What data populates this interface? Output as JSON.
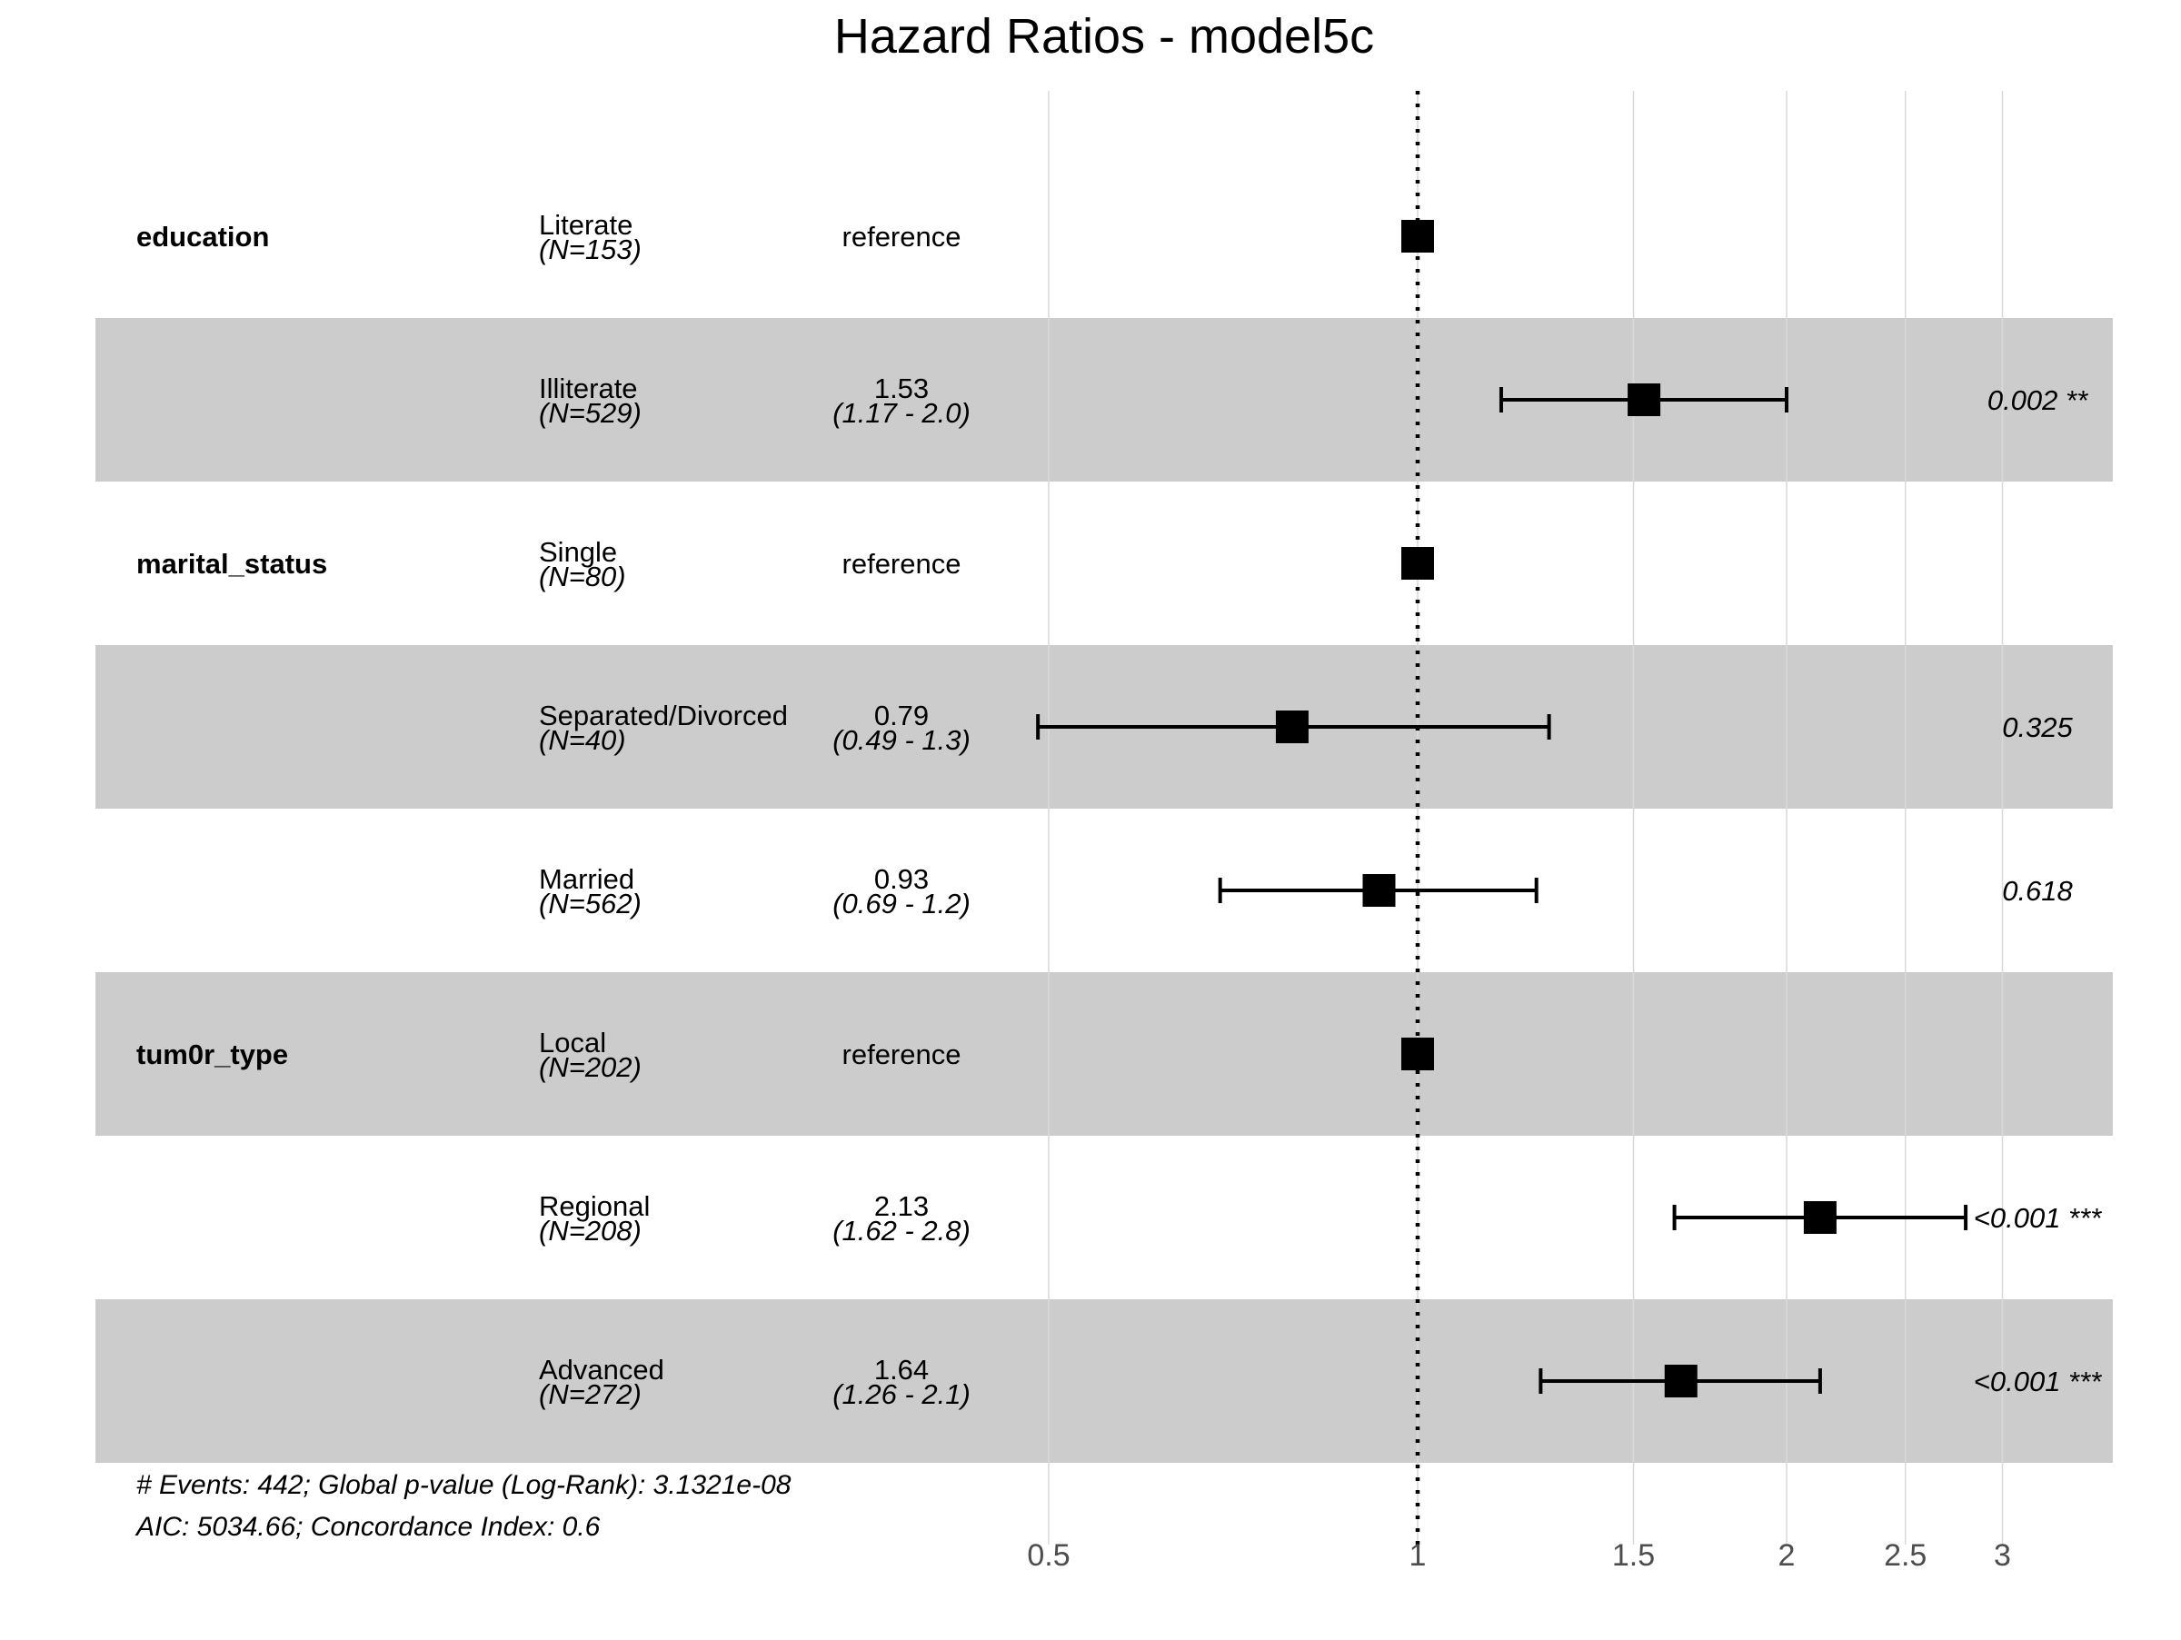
{
  "chart_data": {
    "type": "forest",
    "title": "Hazard Ratios - model5c",
    "x_scale": "log",
    "xlim": [
      0.47,
      3.3
    ],
    "x_ticks": [
      0.5,
      1,
      1.5,
      2,
      2.5,
      3
    ],
    "x_tick_labels": [
      "0.5",
      "1",
      "1.5",
      "2",
      "2.5",
      "3"
    ],
    "reference_line": 1,
    "rows": [
      {
        "variable": "education",
        "level": "Literate",
        "n": "(N=153)",
        "estimate_label": "reference",
        "ci_label": "",
        "p_label": "",
        "hr": 1,
        "lower": null,
        "upper": null,
        "shaded": false
      },
      {
        "variable": "",
        "level": "Illiterate",
        "n": "(N=529)",
        "estimate_label": "1.53",
        "ci_label": "(1.17 - 2.0)",
        "p_label": "0.002 **",
        "hr": 1.53,
        "lower": 1.17,
        "upper": 2.0,
        "shaded": true
      },
      {
        "variable": "marital_status",
        "level": "Single",
        "n": "(N=80)",
        "estimate_label": "reference",
        "ci_label": "",
        "p_label": "",
        "hr": 1,
        "lower": null,
        "upper": null,
        "shaded": false
      },
      {
        "variable": "",
        "level": "Separated/Divorced",
        "n": "(N=40)",
        "estimate_label": "0.79",
        "ci_label": "(0.49 - 1.3)",
        "p_label": "0.325",
        "hr": 0.79,
        "lower": 0.49,
        "upper": 1.28,
        "shaded": true
      },
      {
        "variable": "",
        "level": "Married",
        "n": "(N=562)",
        "estimate_label": "0.93",
        "ci_label": "(0.69 - 1.2)",
        "p_label": "0.618",
        "hr": 0.93,
        "lower": 0.69,
        "upper": 1.25,
        "shaded": false
      },
      {
        "variable": "tum0r_type",
        "level": "Local",
        "n": "(N=202)",
        "estimate_label": "reference",
        "ci_label": "",
        "p_label": "",
        "hr": 1,
        "lower": null,
        "upper": null,
        "shaded": true
      },
      {
        "variable": "",
        "level": "Regional",
        "n": "(N=208)",
        "estimate_label": "2.13",
        "ci_label": "(1.62 - 2.8)",
        "p_label": "<0.001 ***",
        "hr": 2.13,
        "lower": 1.62,
        "upper": 2.8,
        "shaded": false
      },
      {
        "variable": "",
        "level": "Advanced",
        "n": "(N=272)",
        "estimate_label": "1.64",
        "ci_label": "(1.26 - 2.1)",
        "p_label": "<0.001 ***",
        "hr": 1.64,
        "lower": 1.26,
        "upper": 2.13,
        "shaded": true
      }
    ],
    "footer": [
      "# Events: 442; Global p-value (Log-Rank): 3.1321e-08",
      "AIC: 5034.66; Concordance Index: 0.6"
    ]
  },
  "colors": {
    "row_shade": "#cccccc",
    "grid": "#d9d9d9",
    "marker": "#000000",
    "tick_text": "#4d4d4d"
  }
}
